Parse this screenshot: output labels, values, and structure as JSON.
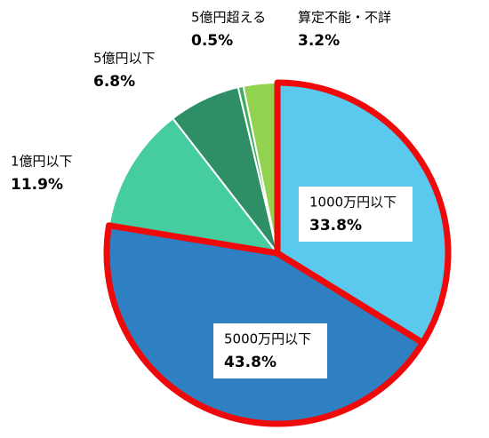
{
  "chart_data": {
    "type": "pie",
    "categories": [
      "1000万円以下",
      "5000万円以下",
      "1億円以下",
      "5億円以下",
      "5億円超える",
      "算定不能・不詳"
    ],
    "values": [
      33.8,
      43.8,
      11.9,
      6.8,
      0.5,
      3.2
    ],
    "value_labels": [
      "33.8%",
      "43.8%",
      "11.9%",
      "6.8%",
      "0.5%",
      "3.2%"
    ],
    "colors": [
      "#5bc8ee",
      "#2e80c2",
      "#45cd9f",
      "#2e8f66",
      "#3fae5a",
      "#91d24f"
    ],
    "highlighted": [
      0,
      1
    ],
    "highlight_color": "#ee0a0a"
  }
}
